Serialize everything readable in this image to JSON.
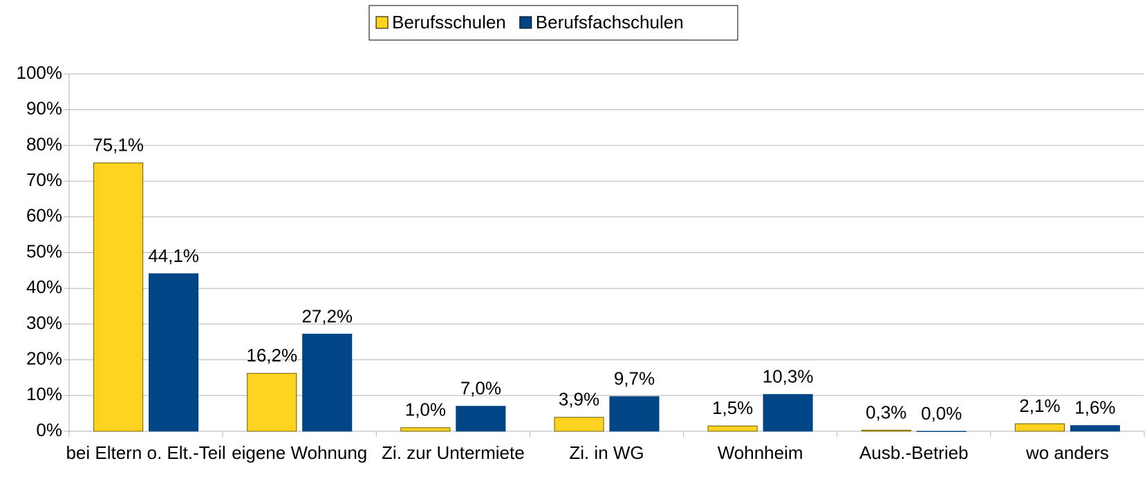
{
  "chart_data": {
    "type": "bar",
    "categories": [
      "bei Eltern o. Elt.-Teil",
      "eigene Wohnung",
      "Zi. zur Untermiete",
      "Zi. in WG",
      "Wohnheim",
      "Ausb.-Betrieb",
      "wo anders"
    ],
    "series": [
      {
        "name": "Berufsschulen",
        "color": "#ffd320",
        "values": [
          75.1,
          16.2,
          1.0,
          3.9,
          1.5,
          0.3,
          2.1
        ],
        "value_labels": [
          "75,1%",
          "16,2%",
          "1,0%",
          "3,9%",
          "1,5%",
          "0,3%",
          "2,1%"
        ]
      },
      {
        "name": "Berufsfachschulen",
        "color": "#004586",
        "values": [
          44.1,
          27.2,
          7.0,
          9.7,
          10.3,
          0.0,
          1.6
        ],
        "value_labels": [
          "44,1%",
          "27,2%",
          "7,0%",
          "9,7%",
          "10,3%",
          "0,0%",
          "1,6%"
        ]
      }
    ],
    "ylim": [
      0,
      100
    ],
    "yticks": [
      {
        "value": 0,
        "label": "0%"
      },
      {
        "value": 10,
        "label": "10%"
      },
      {
        "value": 20,
        "label": "20%"
      },
      {
        "value": 30,
        "label": "30%"
      },
      {
        "value": 40,
        "label": "40%"
      },
      {
        "value": 50,
        "label": "50%"
      },
      {
        "value": 60,
        "label": "60%"
      },
      {
        "value": 70,
        "label": "70%"
      },
      {
        "value": 80,
        "label": "80%"
      },
      {
        "value": 90,
        "label": "90%"
      },
      {
        "value": 100,
        "label": "100%"
      }
    ],
    "grid": true,
    "legend": "top"
  }
}
